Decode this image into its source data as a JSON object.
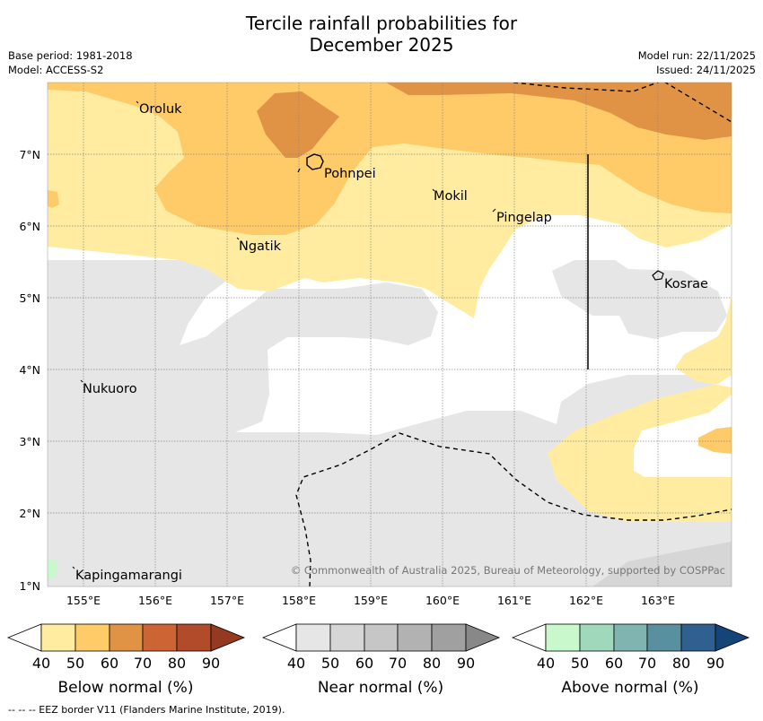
{
  "title": {
    "line1": "Tercile rainfall probabilities for",
    "line2": "December 2025"
  },
  "meta": {
    "base_period": "Base period: 1981-2018",
    "model": "Model: ACCESS-S2",
    "model_run": "Model run: 22/11/2025",
    "issued": "Issued: 24/11/2025"
  },
  "map": {
    "lat_labels": [
      "7°N",
      "6°N",
      "5°N",
      "4°N",
      "3°N",
      "2°N",
      "1°N"
    ],
    "lon_labels": [
      "155°E",
      "156°E",
      "157°E",
      "158°E",
      "159°E",
      "160°E",
      "161°E",
      "162°E",
      "163°E"
    ],
    "places": [
      "Oroluk",
      "Pohnpei",
      "Mokil",
      "Pingelap",
      "Ngatik",
      "Kosrae",
      "Nukuoro",
      "Kapingamarangi"
    ],
    "copyright": "© Commonwealth of Australia 2025, Bureau of Meteorology, supported by COSPPac"
  },
  "legends": {
    "ticks": [
      "40",
      "50",
      "60",
      "70",
      "80",
      "90"
    ],
    "below": {
      "label": "Below normal (%)",
      "colors": [
        "#ffffff",
        "#ffeca0",
        "#fecb68",
        "#e09345",
        "#cd6434",
        "#b14b2a",
        "#963921"
      ]
    },
    "near": {
      "label": "Near normal (%)",
      "colors": [
        "#ffffff",
        "#e6e6e6",
        "#d6d6d6",
        "#c6c6c6",
        "#b2b2b2",
        "#a0a0a0",
        "#888888"
      ]
    },
    "above": {
      "label": "Above normal (%)",
      "colors": [
        "#ffffff",
        "#c8f8cc",
        "#a0d8bc",
        "#80b4b0",
        "#5890a0",
        "#306090",
        "#154478"
      ]
    }
  },
  "footer": "--  --  -- EEZ border V11 (Flanders Marine Institute, 2019)."
}
